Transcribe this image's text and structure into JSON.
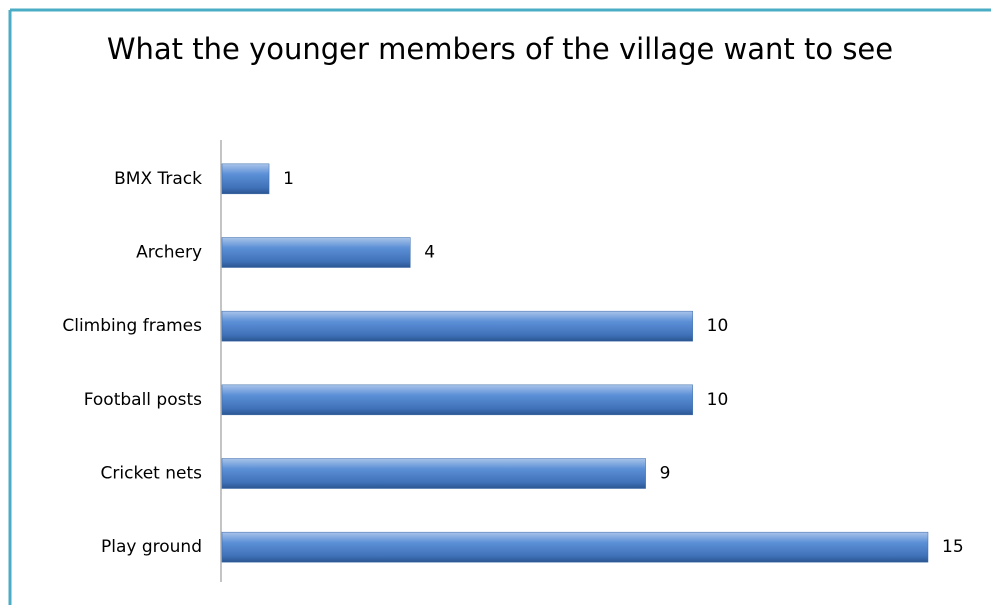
{
  "chart_data": {
    "type": "bar",
    "orientation": "horizontal",
    "title": "What the younger members of the village want to see",
    "categories": [
      "BMX Track",
      "Archery",
      "Climbing frames",
      "Football posts",
      "Cricket nets",
      "Play ground"
    ],
    "values": [
      1,
      4,
      10,
      10,
      9,
      15
    ],
    "color": "#4f81bd",
    "xlim": [
      0,
      15
    ]
  }
}
